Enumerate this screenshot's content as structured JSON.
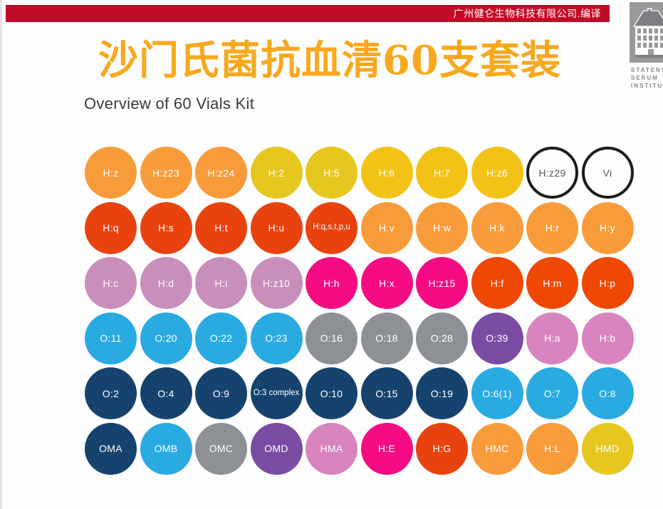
{
  "page": {
    "title_cn": "沙门氏菌抗血清60支套装",
    "title_cn_color": "#f8a81e",
    "subtitle": "Overview of 60 Vials Kit"
  },
  "header": {
    "credit_text": "广州健仑生物科技有限公司.编译",
    "bar_color": "#bf0d26"
  },
  "logo": {
    "org_line1": "STATENS",
    "org_line2": "SERUM",
    "org_line3": "INSTITUT"
  },
  "palette": {
    "orange": "#f89c3b",
    "yellow": "#e6c71f",
    "gold": "#f2c316",
    "white": "#ffffff",
    "red": "#e8430f",
    "redorange": "#ee4804",
    "mauve": "#c98fbb",
    "magenta": "#f50c84",
    "skyblue": "#29abe2",
    "gray": "#8d9095",
    "purple": "#7b4ca4",
    "pink": "#d884be",
    "navy": "#16436e"
  },
  "vials": {
    "rows": [
      [
        {
          "label": "H:z",
          "color": "orange"
        },
        {
          "label": "H:z23",
          "color": "orange"
        },
        {
          "label": "H:z24",
          "color": "orange"
        },
        {
          "label": "H:2",
          "color": "yellow"
        },
        {
          "label": "H:5",
          "color": "yellow"
        },
        {
          "label": "H:6",
          "color": "gold"
        },
        {
          "label": "H:7",
          "color": "gold"
        },
        {
          "label": "H:z6",
          "color": "gold"
        },
        {
          "label": "H:z29",
          "color": "white"
        },
        {
          "label": "Vi",
          "color": "white"
        }
      ],
      [
        {
          "label": "H:q",
          "color": "red"
        },
        {
          "label": "H:s",
          "color": "red"
        },
        {
          "label": "H:t",
          "color": "red"
        },
        {
          "label": "H:u",
          "color": "red"
        },
        {
          "label": "H:q,s,t,p,u",
          "color": "red",
          "small": true
        },
        {
          "label": "H:v",
          "color": "orange"
        },
        {
          "label": "H:w",
          "color": "orange"
        },
        {
          "label": "H:k",
          "color": "orange"
        },
        {
          "label": "H:r",
          "color": "orange"
        },
        {
          "label": "H:y",
          "color": "orange"
        }
      ],
      [
        {
          "label": "H:c",
          "color": "mauve"
        },
        {
          "label": "H:d",
          "color": "mauve"
        },
        {
          "label": "H:i",
          "color": "mauve"
        },
        {
          "label": "H:z10",
          "color": "mauve"
        },
        {
          "label": "H:h",
          "color": "magenta"
        },
        {
          "label": "H:x",
          "color": "magenta"
        },
        {
          "label": "H:z15",
          "color": "magenta"
        },
        {
          "label": "H:f",
          "color": "redorange"
        },
        {
          "label": "H:m",
          "color": "redorange"
        },
        {
          "label": "H:p",
          "color": "redorange"
        }
      ],
      [
        {
          "label": "O:11",
          "color": "skyblue"
        },
        {
          "label": "O:20",
          "color": "skyblue"
        },
        {
          "label": "O:22",
          "color": "skyblue"
        },
        {
          "label": "O:23",
          "color": "skyblue"
        },
        {
          "label": "O:16",
          "color": "gray"
        },
        {
          "label": "O:18",
          "color": "gray"
        },
        {
          "label": "O:28",
          "color": "gray"
        },
        {
          "label": "O:39",
          "color": "purple"
        },
        {
          "label": "H:a",
          "color": "pink"
        },
        {
          "label": "H:b",
          "color": "pink"
        }
      ],
      [
        {
          "label": "O:2",
          "color": "navy"
        },
        {
          "label": "O:4",
          "color": "navy"
        },
        {
          "label": "O:9",
          "color": "navy"
        },
        {
          "label": "O:3 complex",
          "color": "navy",
          "small": true
        },
        {
          "label": "O:10",
          "color": "navy"
        },
        {
          "label": "O:15",
          "color": "navy"
        },
        {
          "label": "O:19",
          "color": "navy"
        },
        {
          "label": "O:6(1)",
          "color": "skyblue"
        },
        {
          "label": "O:7",
          "color": "skyblue"
        },
        {
          "label": "O:8",
          "color": "skyblue"
        }
      ],
      [
        {
          "label": "OMA",
          "color": "navy"
        },
        {
          "label": "OMB",
          "color": "skyblue"
        },
        {
          "label": "OMC",
          "color": "gray"
        },
        {
          "label": "OMD",
          "color": "purple"
        },
        {
          "label": "HMA",
          "color": "pink"
        },
        {
          "label": "H:E",
          "color": "magenta"
        },
        {
          "label": "H:G",
          "color": "red"
        },
        {
          "label": "HMC",
          "color": "orange"
        },
        {
          "label": "H:L",
          "color": "orange"
        },
        {
          "label": "HMD",
          "color": "yellow"
        }
      ]
    ]
  }
}
